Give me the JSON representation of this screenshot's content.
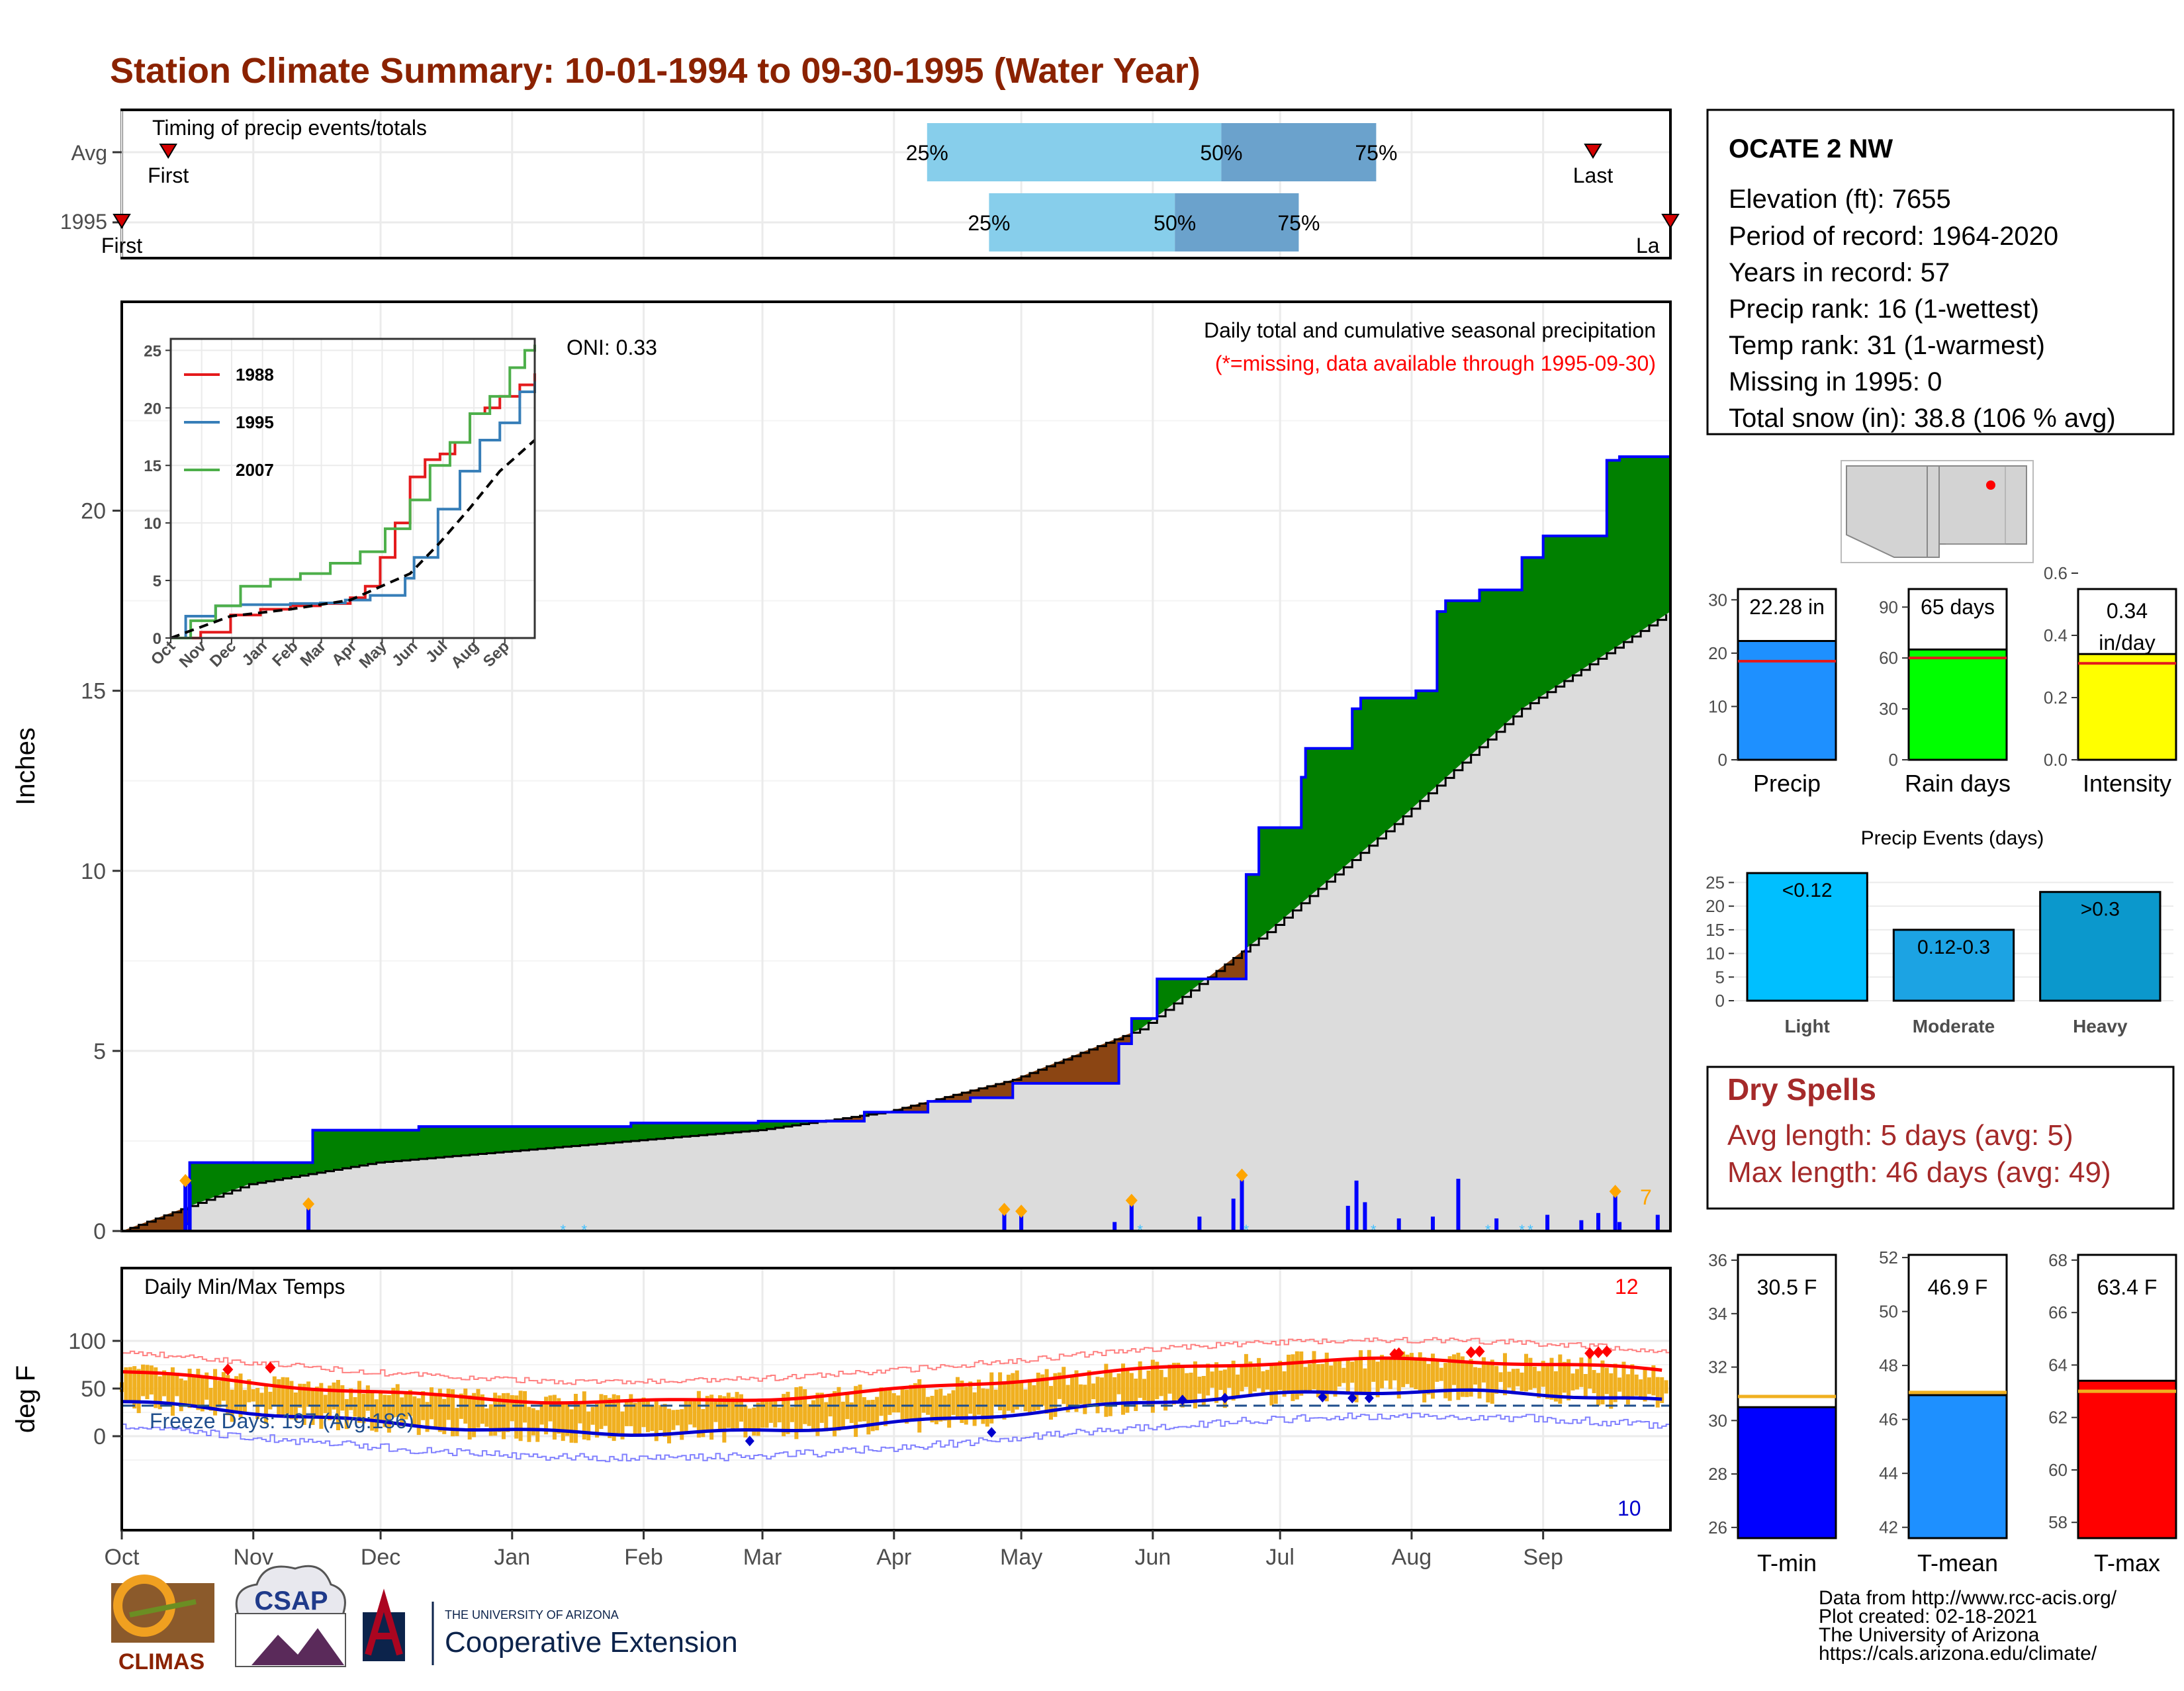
{
  "title": "Station Climate Summary: 10-01-1994 to 09-30-1995 (Water Year)",
  "colors": {
    "title": "#8b2200",
    "green_fill": "#008000",
    "blue_line": "#0000ff",
    "gray_fill": "#dcdcdc",
    "light_blue": "#87ceeb",
    "mid_blue": "#6ba2cc",
    "orange_diamond": "#ffa500",
    "temp_bar": "#f0b020",
    "tmax_red": "#ff0000",
    "tmin_blue": "#0000cd",
    "dry_red": "#a52a2a"
  },
  "timing_panel": {
    "title": "Timing of precip events/totals",
    "rows": [
      {
        "label": "Avg",
        "first": "First",
        "last": "Last",
        "q25": "25%",
        "q50": "50%",
        "q75": "75%"
      },
      {
        "label": "1995",
        "first": "First",
        "last": "La",
        "q25": "25%",
        "q50": "50%",
        "q75": "75%"
      }
    ],
    "fractions": {
      "avg": {
        "first": 0.03,
        "q25": 0.52,
        "q50": 0.71,
        "q75": 0.81,
        "last": 0.95
      },
      "y1995": {
        "first": 0.0,
        "q25": 0.56,
        "q50": 0.68,
        "q75": 0.76,
        "last": 1.0
      }
    }
  },
  "precip_panel": {
    "ylabel": "Inches",
    "header": "Daily total and cumulative seasonal precipitation",
    "missing_note": "(*=missing, data available through 1995-09-30)",
    "oni": "ONI: 0.33",
    "corner_count": "7",
    "y_ticks": [
      "0",
      "5",
      "10",
      "15",
      "20"
    ]
  },
  "inset": {
    "series_names": [
      "1988",
      "1995",
      "2007"
    ],
    "series_colors": [
      "#e41a1c",
      "#377eb8",
      "#4daf4a"
    ],
    "y_ticks": [
      "0",
      "5",
      "10",
      "15",
      "20",
      "25"
    ],
    "x_ticks": [
      "Oct",
      "Nov",
      "Dec",
      "Jan",
      "Feb",
      "Mar",
      "Apr",
      "May",
      "Jun",
      "Jul",
      "Aug",
      "Sep"
    ]
  },
  "temp_panel": {
    "title": "Daily Min/Max Temps",
    "ylabel": "deg F",
    "freeze_text": "Freeze Days: 197 (Avg:186)",
    "top_count": "12",
    "bottom_count": "10",
    "y_ticks": [
      "0",
      "50",
      "100"
    ]
  },
  "months": [
    "Oct",
    "Nov",
    "Dec",
    "Jan",
    "Feb",
    "Mar",
    "Apr",
    "May",
    "Jun",
    "Jul",
    "Aug",
    "Sep"
  ],
  "station": {
    "name": "OCATE 2 NW",
    "lines": [
      "Elevation (ft): 7655",
      "Period of record: 1964-2020",
      "Years in record: 57",
      "Precip rank: 16 (1-wettest)",
      "Temp rank: 31 (1-warmest)",
      "Missing in 1995: 0",
      "Total snow (in): 38.8 (106 % avg)"
    ]
  },
  "summary_bars": [
    {
      "label": "Precip",
      "value_text": "22.28 in",
      "value": 22.28,
      "avg": 18.5,
      "max": 35,
      "ticks": [
        "0",
        "10",
        "20",
        "30"
      ],
      "color": "#1e90ff"
    },
    {
      "label": "Rain days",
      "value_text": "65 days",
      "value": 65,
      "avg": 60,
      "max": 110,
      "ticks": [
        "0",
        "30",
        "60",
        "90"
      ],
      "color": "#00ff00"
    },
    {
      "label": "Intensity",
      "value_text_1": "0.34",
      "value_text_2": "in/day",
      "value": 0.34,
      "avg": 0.31,
      "max": 0.6,
      "ticks": [
        "0.0",
        "0.2",
        "0.4",
        "0.6"
      ],
      "color": "#ffff00"
    }
  ],
  "events": {
    "title": "Precip Events (days)",
    "y_ticks": [
      "0",
      "5",
      "10",
      "15",
      "20",
      "25"
    ],
    "bars": [
      {
        "category": "Light",
        "label": "<0.12",
        "value": 27,
        "color": "#00bfff"
      },
      {
        "category": "Moderate",
        "label": "0.12-0.3",
        "value": 15,
        "color": "#1ca3e3"
      },
      {
        "category": "Heavy",
        "label": ">0.3",
        "value": 23,
        "color": "#0b98cc"
      }
    ]
  },
  "dry_spells": {
    "title": "Dry Spells",
    "avg_line": "Avg length: 5 days (avg: 5)",
    "max_line": "Max length: 46 days (avg: 49)"
  },
  "temp_bars": [
    {
      "label": "T-min",
      "value_text": "30.5 F",
      "value": 30.5,
      "avg": 30.9,
      "min": 25.6,
      "max": 36.2,
      "ticks": [
        "26",
        "28",
        "30",
        "32",
        "34",
        "36"
      ],
      "tick_vals": [
        26,
        28,
        30,
        32,
        34,
        36
      ],
      "color": "#0000ff"
    },
    {
      "label": "T-mean",
      "value_text": "46.9 F",
      "value": 46.9,
      "avg": 47.0,
      "min": 41.6,
      "max": 52.1,
      "ticks": [
        "42",
        "44",
        "46",
        "48",
        "50",
        "52"
      ],
      "tick_vals": [
        42,
        44,
        46,
        48,
        50,
        52
      ],
      "color": "#1e90ff"
    },
    {
      "label": "T-max",
      "value_text": "63.4 F",
      "value": 63.4,
      "avg": 63.0,
      "min": 57.4,
      "max": 68.2,
      "ticks": [
        "58",
        "60",
        "62",
        "64",
        "66",
        "68"
      ],
      "tick_vals": [
        58,
        60,
        62,
        64,
        66,
        68
      ],
      "color": "#ff0000"
    }
  ],
  "footer": {
    "lines": [
      "Data from http://www.rcc-acis.org/",
      "Plot created: 02-18-2021",
      "The University of Arizona",
      "https://cals.arizona.edu/climate/"
    ],
    "climas": "CLIMAS",
    "csap": "CSAP",
    "ua_small": "THE UNIVERSITY OF ARIZONA",
    "ua_big": "Cooperative Extension"
  },
  "chart_data": {
    "type": "area",
    "title": "Daily total and cumulative seasonal precipitation",
    "ylabel": "Inches",
    "ylim": [
      0,
      22.5
    ],
    "x_unit": "day of water year",
    "series": [
      {
        "name": "1995",
        "x": [
          0,
          15,
          16,
          44,
          45,
          70,
          120,
          150,
          175,
          190,
          200,
          210,
          235,
          238,
          244,
          265,
          268,
          278,
          279,
          290,
          292,
          305,
          310,
          312,
          320,
          330,
          335,
          350,
          353,
          365
        ],
        "values": [
          0,
          0.2,
          1.9,
          1.9,
          2.8,
          2.9,
          3.0,
          3.05,
          3.3,
          3.6,
          3.7,
          4.1,
          5.2,
          5.9,
          7.0,
          9.9,
          11.2,
          12.6,
          13.4,
          14.5,
          14.8,
          15.0,
          17.2,
          17.5,
          17.8,
          18.7,
          19.3,
          21.4,
          21.5,
          22.28
        ]
      },
      {
        "name": "",
        "x": [
          0,
          30,
          60,
          90,
          120,
          150,
          180,
          210,
          240,
          270,
          300,
          330,
          365
        ],
        "values": [
          0,
          1.3,
          1.9,
          2.2,
          2.5,
          2.8,
          3.3,
          4.2,
          5.6,
          8.3,
          11.3,
          14.5,
          17.2
        ]
      }
    ],
    "daily_precip": [
      {
        "day": 15,
        "value": 1.4
      },
      {
        "day": 16,
        "value": 1.3
      },
      {
        "day": 44,
        "value": 0.75
      },
      {
        "day": 208,
        "value": 0.6
      },
      {
        "day": 212,
        "value": 0.55
      },
      {
        "day": 234,
        "value": 0.25
      },
      {
        "day": 238,
        "value": 0.85
      },
      {
        "day": 254,
        "value": 0.4
      },
      {
        "day": 262,
        "value": 0.9
      },
      {
        "day": 264,
        "value": 1.55
      },
      {
        "day": 289,
        "value": 0.7
      },
      {
        "day": 291,
        "value": 1.4
      },
      {
        "day": 293,
        "value": 0.8
      },
      {
        "day": 301,
        "value": 0.35
      },
      {
        "day": 309,
        "value": 0.4
      },
      {
        "day": 315,
        "value": 1.45
      },
      {
        "day": 324,
        "value": 0.35
      },
      {
        "day": 336,
        "value": 0.45
      },
      {
        "day": 344,
        "value": 0.3
      },
      {
        "day": 348,
        "value": 0.5
      },
      {
        "day": 352,
        "value": 1.1
      },
      {
        "day": 353,
        "value": 0.25
      },
      {
        "day": 362,
        "value": 0.45
      }
    ],
    "inset_series": [
      {
        "name": "1988",
        "x": [
          0,
          30,
          60,
          90,
          120,
          150,
          180,
          195,
          210,
          225,
          240,
          255,
          270,
          285,
          300,
          315,
          330,
          350,
          365
        ],
        "values": [
          0,
          0.5,
          2.0,
          2.5,
          2.8,
          3.0,
          3.5,
          4.5,
          7,
          10,
          14,
          15.5,
          16,
          17,
          19.5,
          20,
          21,
          22,
          23
        ]
      },
      {
        "name": "1995",
        "x": [
          0,
          15,
          45,
          70,
          120,
          150,
          175,
          200,
          235,
          244,
          268,
          290,
          310,
          330,
          350,
          365
        ],
        "values": [
          0,
          1.9,
          2.8,
          2.9,
          3.0,
          3.05,
          3.3,
          3.7,
          5.2,
          7.0,
          11.2,
          14.5,
          17.2,
          18.7,
          21.4,
          22.3
        ]
      },
      {
        "name": "2007",
        "x": [
          0,
          20,
          45,
          70,
          100,
          130,
          160,
          190,
          215,
          240,
          260,
          280,
          300,
          320,
          340,
          355,
          365
        ],
        "values": [
          0,
          1.5,
          2.8,
          4.5,
          5.1,
          5.6,
          6.5,
          7.5,
          9.5,
          12,
          15,
          17,
          19.5,
          21,
          23.5,
          25,
          25.5
        ]
      },
      {
        "name": "",
        "x": [
          0,
          60,
          120,
          180,
          240,
          270,
          300,
          330,
          365
        ],
        "values": [
          0,
          1.9,
          2.5,
          3.3,
          5.6,
          8.3,
          11.3,
          14.5,
          17.2
        ]
      }
    ]
  }
}
